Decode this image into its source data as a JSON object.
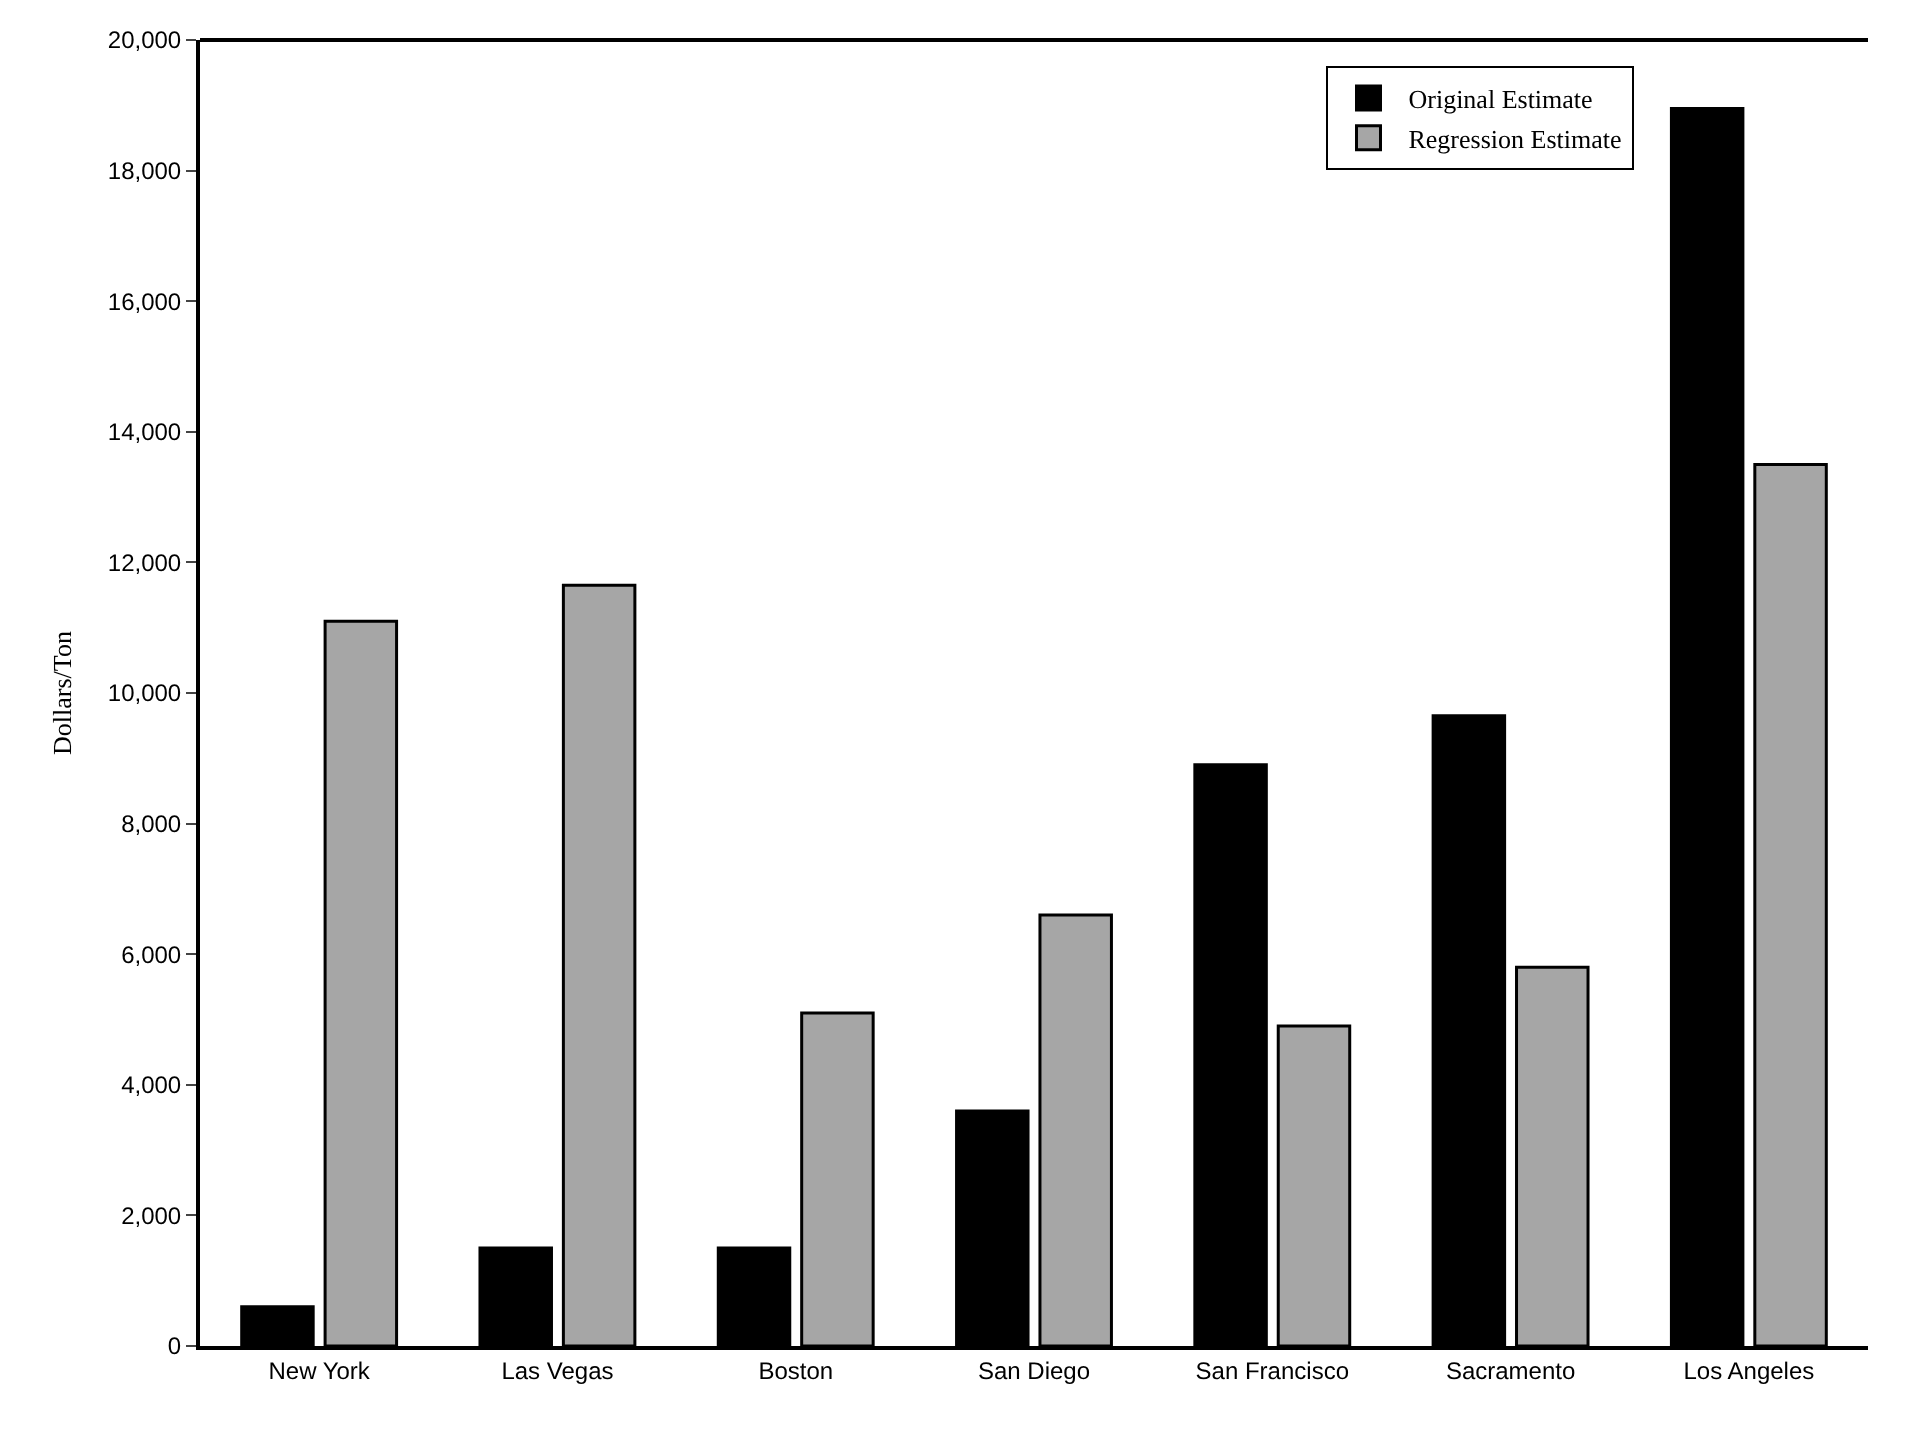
{
  "chart_data": {
    "type": "bar",
    "ylabel": "Dollars/Ton",
    "categories": [
      "New York",
      "Las Vegas",
      "Boston",
      "San Diego",
      "San Francisco",
      "Sacramento",
      "Los Angeles"
    ],
    "series": [
      {
        "name": "Original Estimate",
        "color": "#000000",
        "values": [
          600,
          1500,
          1500,
          3600,
          8900,
          9650,
          18950
        ]
      },
      {
        "name": "Regression Estimate",
        "color": "#a6a6a6",
        "values": [
          11100,
          11650,
          5100,
          6600,
          4900,
          5800,
          13500
        ]
      }
    ],
    "ylim": [
      0,
      20000
    ],
    "yticks": [
      0,
      {
        "value": 2000,
        "label": "2,000"
      },
      {
        "value": 4000,
        "label": "4,000"
      },
      {
        "value": 6000,
        "label": "6,000"
      },
      {
        "value": 8000,
        "label": "8,000"
      },
      {
        "value": 10000,
        "label": "10,000"
      },
      {
        "value": 12000,
        "label": "12,000"
      },
      {
        "value": 14000,
        "label": "14,000"
      },
      {
        "value": 16000,
        "label": "16,000"
      },
      {
        "value": 18000,
        "label": "18,000"
      },
      {
        "value": 20000,
        "label": "20,000"
      }
    ],
    "grid": false,
    "legend": "top right"
  }
}
